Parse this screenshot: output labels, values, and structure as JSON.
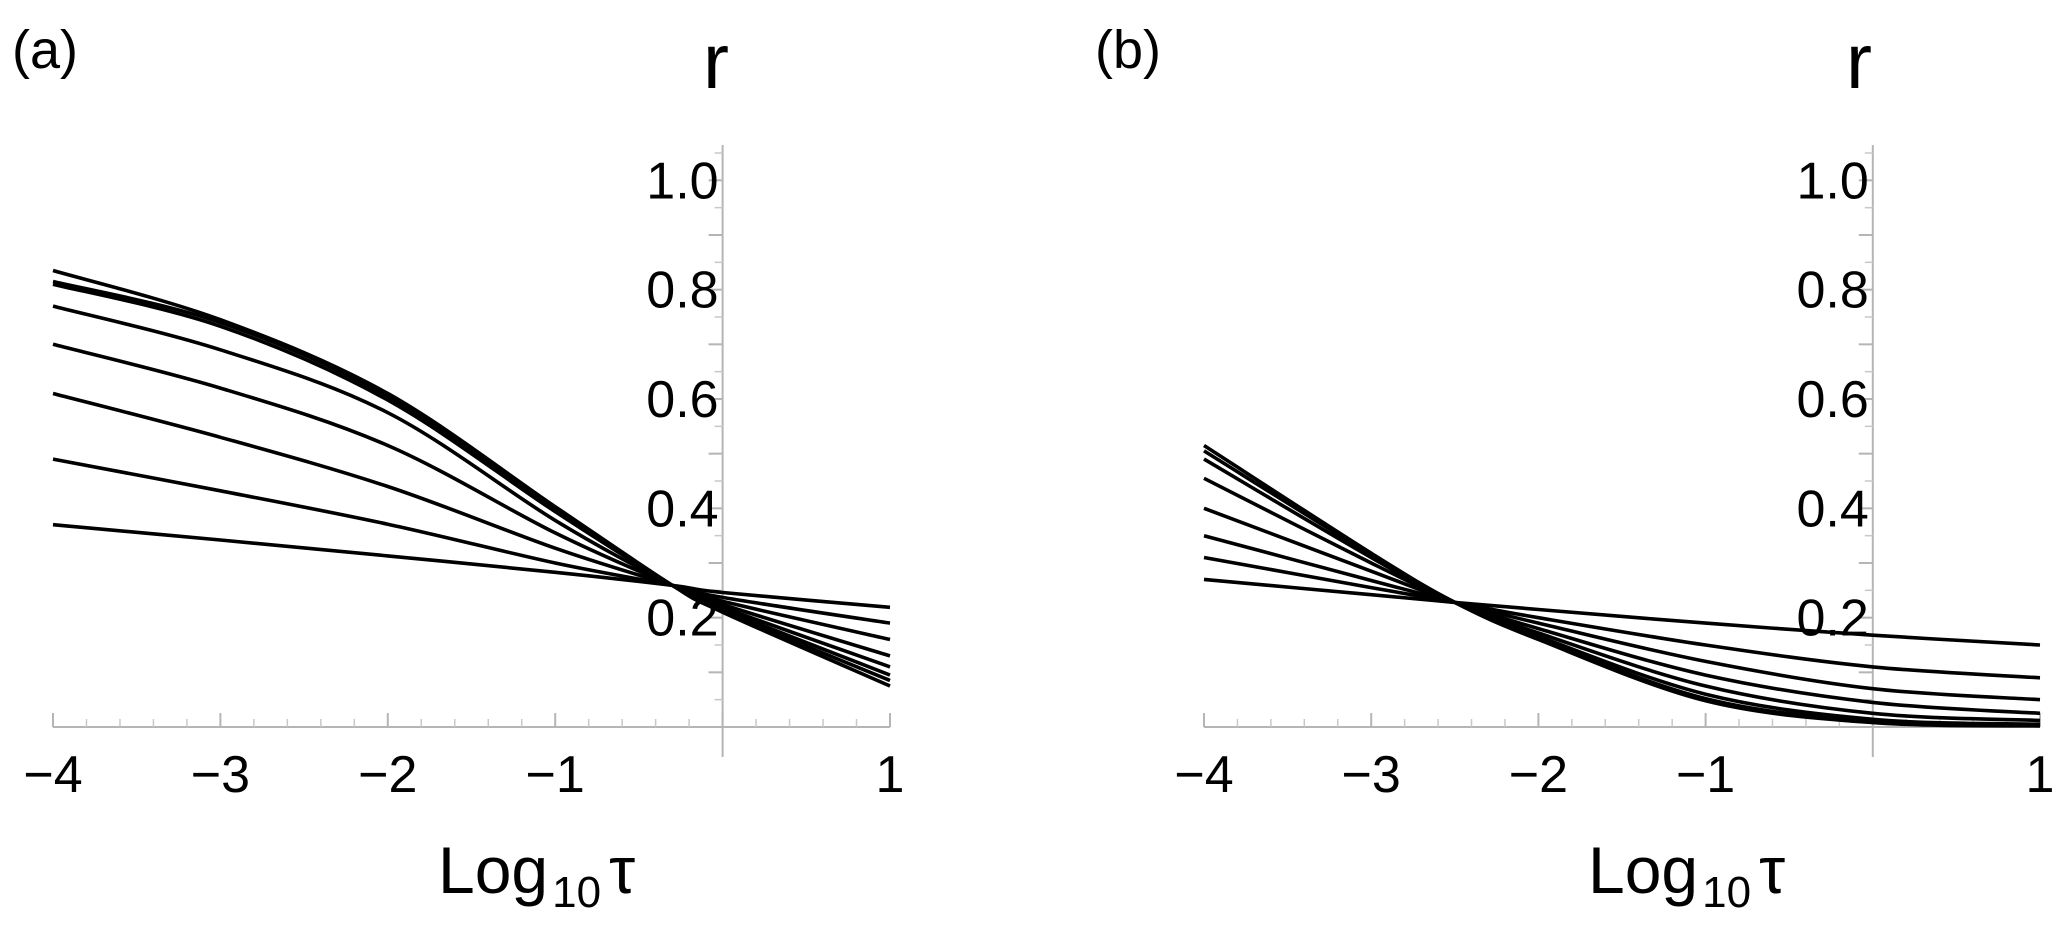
{
  "chart_data": [
    {
      "type": "line",
      "panel_label": "(a)",
      "ylabel": "r",
      "xlabel": {
        "main": "Log",
        "sub": "10",
        "symbol": "τ"
      },
      "xlim": [
        -4,
        1
      ],
      "ylim": [
        0,
        1.05
      ],
      "xticks": [
        -4,
        -3,
        -2,
        -1,
        1
      ],
      "xtick_labels": [
        "−4",
        "−3",
        "−2",
        "−1",
        "1"
      ],
      "yticks": [
        0.2,
        0.4,
        0.6,
        0.8,
        1.0
      ],
      "ytick_labels": [
        "0.2",
        "0.4",
        "0.6",
        "0.8",
        "1.0"
      ],
      "grid": false,
      "series": [
        {
          "x": [
            -4,
            -3,
            -2,
            -1,
            -0.3,
            0,
            1
          ],
          "values": [
            0.37,
            0.342,
            0.313,
            0.283,
            0.259,
            0.246,
            0.219
          ]
        },
        {
          "x": [
            -4,
            -3,
            -2,
            -1,
            -0.3,
            0,
            1
          ],
          "values": [
            0.49,
            0.432,
            0.371,
            0.3,
            0.259,
            0.237,
            0.19
          ]
        },
        {
          "x": [
            -4,
            -3,
            -2,
            -1,
            -0.3,
            0,
            1
          ],
          "values": [
            0.61,
            0.53,
            0.44,
            0.327,
            0.259,
            0.23,
            0.16
          ]
        },
        {
          "x": [
            -4,
            -3,
            -2,
            -1,
            -0.3,
            0,
            1
          ],
          "values": [
            0.7,
            0.62,
            0.515,
            0.355,
            0.259,
            0.224,
            0.13
          ]
        },
        {
          "x": [
            -4,
            -3,
            -2,
            -1,
            -0.3,
            0,
            1
          ],
          "values": [
            0.77,
            0.69,
            0.575,
            0.378,
            0.259,
            0.219,
            0.11
          ]
        },
        {
          "x": [
            -4,
            -3,
            -2,
            -1,
            -0.3,
            0,
            1
          ],
          "values": [
            0.81,
            0.733,
            0.598,
            0.394,
            0.259,
            0.215,
            0.095
          ]
        },
        {
          "x": [
            -4,
            -3,
            -2,
            -1,
            -0.3,
            0,
            1
          ],
          "values": [
            0.815,
            0.74,
            0.605,
            0.4,
            0.259,
            0.212,
            0.085
          ]
        },
        {
          "x": [
            -4,
            -3,
            -2,
            -1,
            -0.3,
            0,
            1
          ],
          "values": [
            0.835,
            0.745,
            0.61,
            0.403,
            0.259,
            0.21,
            0.075
          ]
        }
      ]
    },
    {
      "type": "line",
      "panel_label": "(b)",
      "ylabel": "r",
      "xlabel": {
        "main": "Log",
        "sub": "10",
        "symbol": "τ"
      },
      "xlim": [
        -4,
        1
      ],
      "ylim": [
        0,
        1.05
      ],
      "xticks": [
        -4,
        -3,
        -2,
        -1,
        1
      ],
      "xtick_labels": [
        "−4",
        "−3",
        "−2",
        "−1",
        "1"
      ],
      "yticks": [
        0.2,
        0.4,
        0.6,
        0.8,
        1.0
      ],
      "ytick_labels": [
        "0.2",
        "0.4",
        "0.6",
        "0.8",
        "1.0"
      ],
      "grid": false,
      "series": [
        {
          "x": [
            -4,
            -3,
            -2.5,
            -2,
            -1,
            0,
            1
          ],
          "values": [
            0.27,
            0.242,
            0.228,
            0.215,
            0.19,
            0.168,
            0.15
          ]
        },
        {
          "x": [
            -4,
            -3,
            -2.5,
            -2,
            -1,
            0,
            1
          ],
          "values": [
            0.31,
            0.255,
            0.228,
            0.2,
            0.15,
            0.11,
            0.09
          ]
        },
        {
          "x": [
            -4,
            -3,
            -2.5,
            -2,
            -1,
            0,
            1
          ],
          "values": [
            0.35,
            0.268,
            0.228,
            0.19,
            0.12,
            0.07,
            0.05
          ]
        },
        {
          "x": [
            -4,
            -3,
            -2.5,
            -2,
            -1,
            0,
            1
          ],
          "values": [
            0.4,
            0.285,
            0.228,
            0.18,
            0.095,
            0.045,
            0.025
          ]
        },
        {
          "x": [
            -4,
            -3,
            -2.5,
            -2,
            -1,
            0,
            1
          ],
          "values": [
            0.455,
            0.3,
            0.228,
            0.172,
            0.075,
            0.025,
            0.012
          ]
        },
        {
          "x": [
            -4,
            -3,
            -2.5,
            -2,
            -1,
            0,
            1
          ],
          "values": [
            0.49,
            0.31,
            0.228,
            0.166,
            0.06,
            0.014,
            0.005
          ]
        },
        {
          "x": [
            -4,
            -3,
            -2.5,
            -2,
            -1,
            0,
            1
          ],
          "values": [
            0.505,
            0.315,
            0.228,
            0.162,
            0.052,
            0.01,
            0.003
          ]
        },
        {
          "x": [
            -4,
            -3,
            -2.5,
            -2,
            -1,
            0,
            1
          ],
          "values": [
            0.515,
            0.318,
            0.228,
            0.16,
            0.048,
            0.008,
            0.002
          ]
        }
      ]
    }
  ]
}
